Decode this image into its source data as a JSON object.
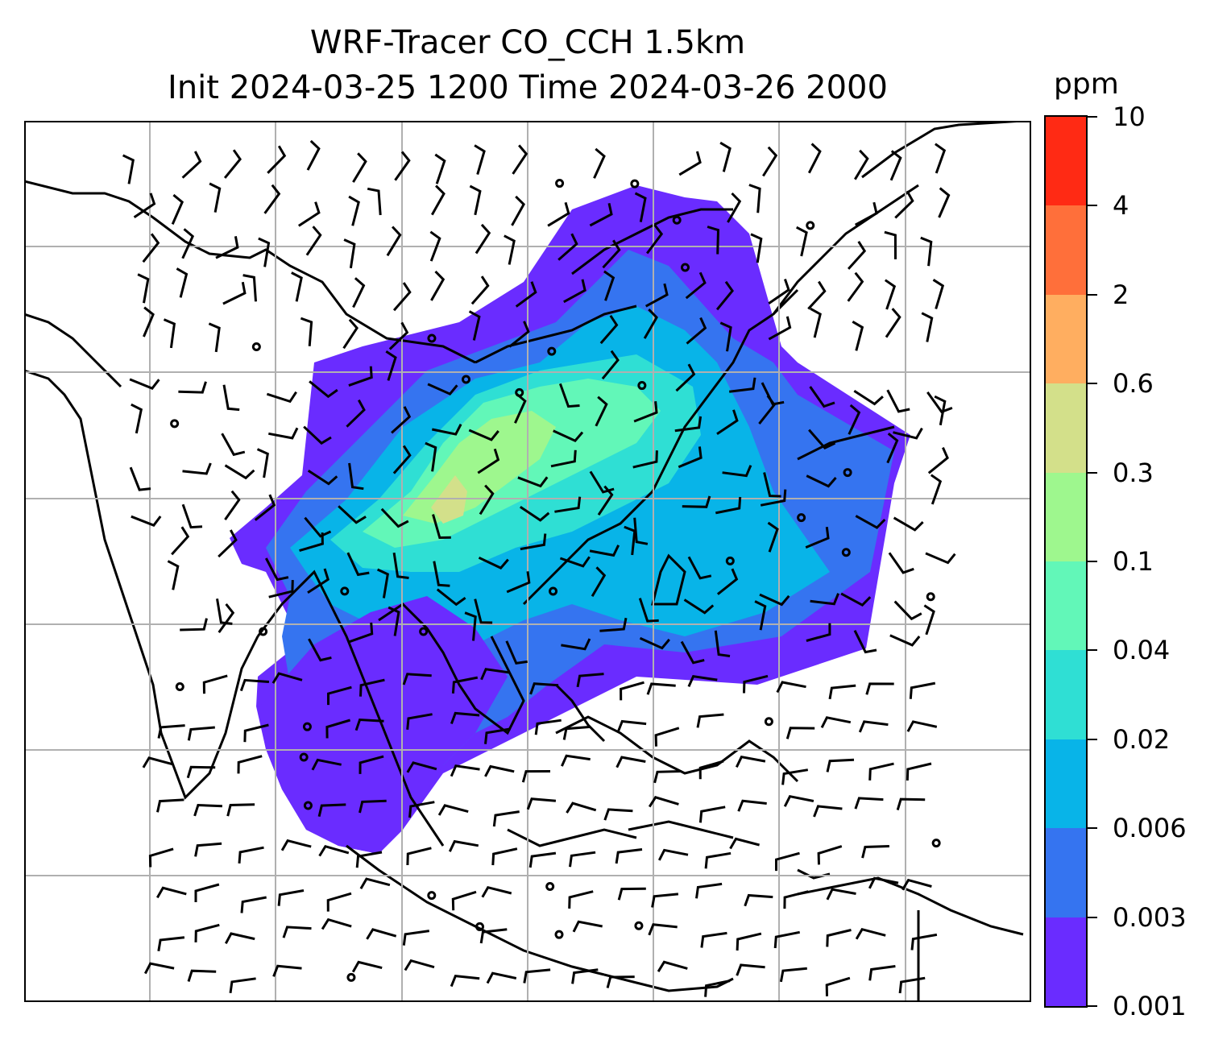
{
  "title": {
    "line1": "WRF-Tracer CO_CCH 1.5km",
    "line2": "Init 2024-03-25 1200 Time 2024-03-26 2000"
  },
  "colorbar": {
    "unit": "ppm",
    "levels": [
      "0.001",
      "0.003",
      "0.006",
      "0.02",
      "0.04",
      "0.1",
      "0.3",
      "0.6",
      "2",
      "4",
      "10"
    ],
    "colors": [
      "#6a2cff",
      "#3574f0",
      "#08b4e8",
      "#2fdfd4",
      "#62f7b8",
      "#9ef78e",
      "#d3e08a",
      "#ffae60",
      "#ff6f3a",
      "#ff2a14"
    ]
  },
  "map": {
    "gridlines": true,
    "land_outline_color": "#000000",
    "grid_color": "#b0b0b0",
    "field": "CO tracer concentration with wind barbs"
  }
}
